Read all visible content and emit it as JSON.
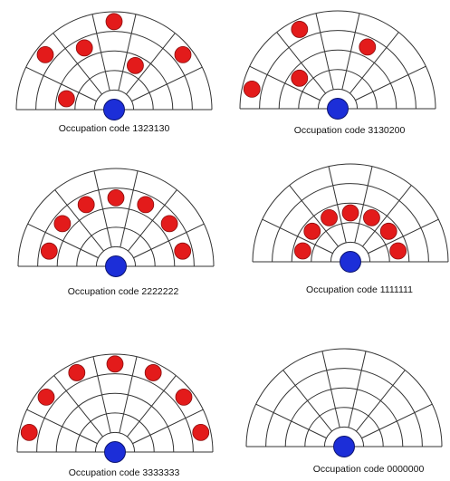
{
  "colors": {
    "grid": "#333333",
    "occupied_marker": "#e31b1b",
    "occupied_outline": "#8a1010",
    "center_marker": "#1c2ed8",
    "center_outline": "#0d1570"
  },
  "panels": [
    {
      "id": "panel-1",
      "caption": "Occupation code 1323130",
      "code": "1323130"
    },
    {
      "id": "panel-2",
      "caption": "Occupation code 3130200",
      "code": "3130200"
    },
    {
      "id": "panel-3",
      "caption": "Occupation code 2222222",
      "code": "2222222"
    },
    {
      "id": "panel-4",
      "caption": "Occupation code 1111111",
      "code": "1111111"
    },
    {
      "id": "panel-5",
      "caption": "Occupation code 3333333",
      "code": "3333333"
    },
    {
      "id": "panel-6",
      "caption": "Occupation code 0000000",
      "code": "0000000"
    }
  ]
}
